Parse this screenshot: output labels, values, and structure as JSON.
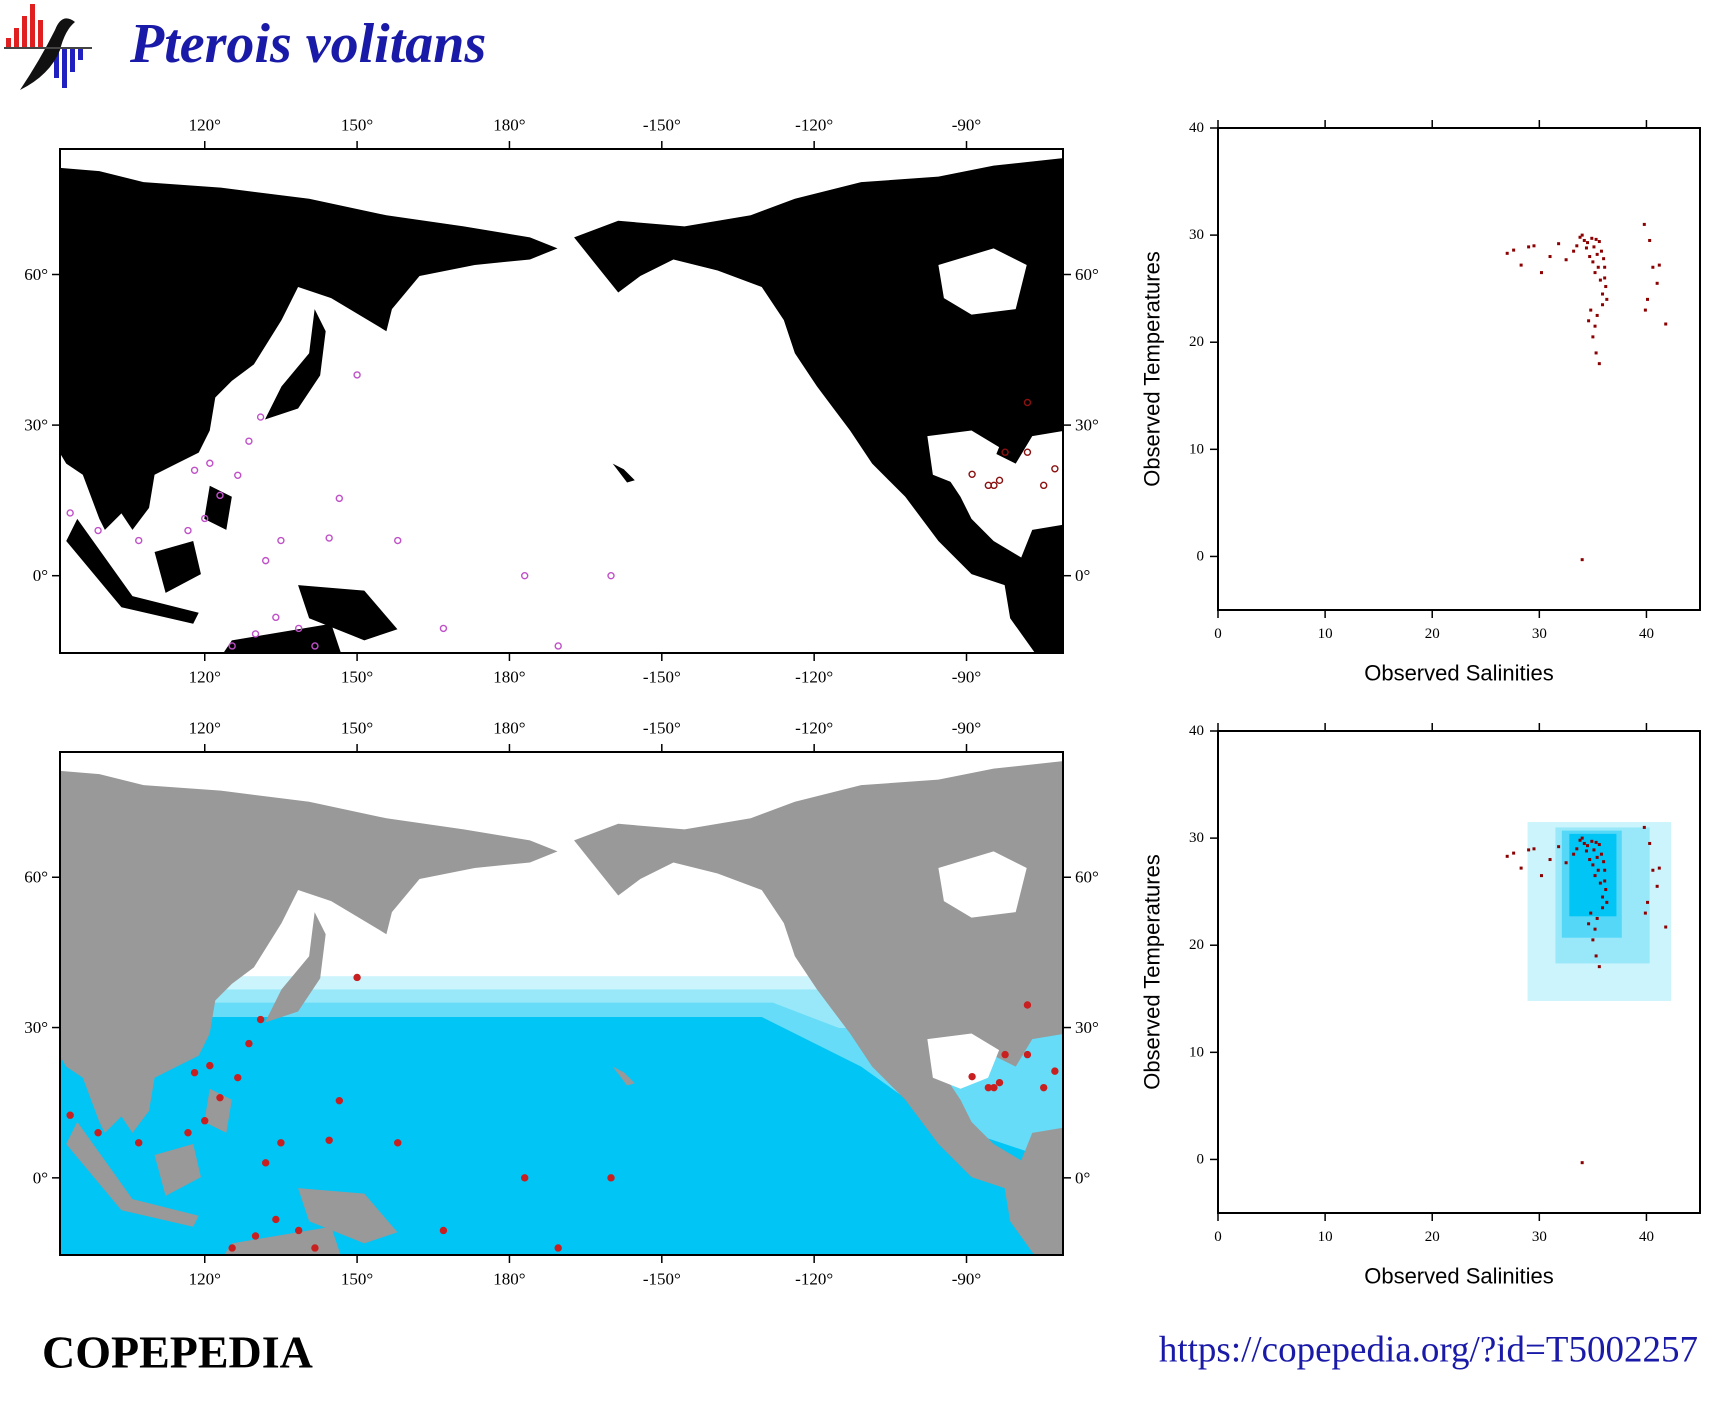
{
  "header": {
    "title": "Pterois volitans"
  },
  "chart_data": [
    {
      "type": "map",
      "land": "#000000",
      "marker": "open",
      "xlim": [
        91.5,
        -71
      ],
      "ylim": [
        -15.4,
        85
      ],
      "xticks": [
        {
          "value": 120,
          "label": "120°"
        },
        {
          "value": 150,
          "label": "150°"
        },
        {
          "value": 180,
          "label": "180°"
        },
        {
          "value": -150,
          "label": "-150°"
        },
        {
          "value": -120,
          "label": "-120°"
        },
        {
          "value": -90,
          "label": "-90°"
        }
      ],
      "yticks": [
        {
          "value": 0,
          "label": "0°"
        },
        {
          "value": 30,
          "label": "30°"
        },
        {
          "value": 60,
          "label": "60°"
        }
      ],
      "points": [
        {
          "color": "#c050c8",
          "lon": [
            150,
            146.5,
            144.5,
            135,
            132,
            158,
            -177,
            -160,
            -170.4,
            167,
            126.5,
            121,
            123,
            120,
            116.7,
            107,
            99,
            93.5,
            134,
            138.5,
            130,
            125.4,
            141.7,
            118,
            128.7,
            131
          ],
          "lat": [
            40,
            15.4,
            7.5,
            7,
            3,
            7,
            0,
            0,
            -14,
            -10.5,
            20,
            22.4,
            16,
            11.4,
            9,
            7,
            9,
            12.5,
            -8.3,
            -10.5,
            -11.6,
            -14,
            -14,
            21,
            26.8,
            31.6
          ]
        },
        {
          "color": "#8b1010",
          "lon": [
            -88.9,
            -85.7,
            -83.5,
            -82.4,
            -78,
            -74.8,
            -72.6,
            -78,
            -84.6
          ],
          "lat": [
            20.2,
            18,
            19,
            24.6,
            24.6,
            18,
            21.3,
            34.5,
            18
          ]
        }
      ]
    },
    {
      "type": "scatter",
      "xlabel": "Observed Salinities",
      "ylabel": "Observed Temperatures",
      "color": "#8b0000",
      "xlim": [
        0,
        45
      ],
      "ylim": [
        -5,
        40
      ],
      "xticks": [
        0,
        10,
        20,
        30,
        40
      ],
      "yticks": [
        0,
        10,
        20,
        30,
        40
      ],
      "x": [
        33.2,
        33.5,
        33.8,
        34.0,
        34.2,
        34.4,
        34.5,
        34.7,
        34.9,
        35.0,
        35.1,
        35.2,
        35.3,
        35.4,
        35.5,
        35.6,
        35.7,
        35.8,
        35.9,
        36.0,
        36.1,
        36.2,
        36.3,
        34.6,
        35.0,
        35.3,
        35.6,
        35.2,
        34.8,
        35.4,
        35.9,
        36.1,
        27.0,
        27.6,
        28.3,
        29.0,
        29.5,
        30.2,
        31.0,
        31.8,
        32.5,
        39.8,
        40.3,
        40.6,
        41.0,
        41.2,
        40.1,
        41.8,
        39.9,
        34.0
      ],
      "y": [
        28.5,
        29.0,
        29.8,
        30.0,
        29.5,
        28.8,
        29.3,
        28.0,
        29.7,
        27.5,
        28.9,
        26.5,
        29.6,
        28.2,
        27.0,
        29.4,
        25.8,
        28.5,
        24.5,
        27.8,
        26.0,
        25.2,
        24.0,
        22.0,
        20.5,
        19.0,
        18.0,
        21.5,
        23.0,
        22.5,
        23.5,
        27.0,
        28.3,
        28.6,
        27.2,
        28.9,
        29.0,
        26.5,
        28.0,
        29.2,
        27.7,
        31.0,
        29.5,
        27.0,
        25.5,
        27.2,
        24.0,
        21.7,
        23.0,
        -0.3
      ]
    },
    {
      "type": "map",
      "land": "#999999",
      "marker": "filled",
      "xlim": [
        91.5,
        -71
      ],
      "ylim": [
        -15.4,
        85
      ],
      "xticks": [
        {
          "value": 120,
          "label": "120°"
        },
        {
          "value": 150,
          "label": "150°"
        },
        {
          "value": 180,
          "label": "180°"
        },
        {
          "value": -150,
          "label": "-150°"
        },
        {
          "value": -120,
          "label": "-120°"
        },
        {
          "value": -90,
          "label": "-90°"
        }
      ],
      "yticks": [
        {
          "value": 0,
          "label": "0°"
        },
        {
          "value": 30,
          "label": "30°"
        },
        {
          "value": 60,
          "label": "60°"
        }
      ],
      "points": [
        {
          "color": "#c82020",
          "lon": [
            150,
            146.5,
            144.5,
            135,
            132,
            158,
            -177,
            -160,
            -170.4,
            167,
            126.5,
            121,
            123,
            120,
            116.7,
            107,
            99,
            93.5,
            134,
            138.5,
            130,
            125.4,
            141.7,
            118,
            128.7,
            131
          ],
          "lat": [
            40,
            15.4,
            7.5,
            7,
            3,
            7,
            0,
            0,
            -14,
            -10.5,
            20,
            22.4,
            16,
            11.4,
            9,
            7,
            9,
            12.5,
            -8.3,
            -10.5,
            -11.6,
            -14,
            -14,
            21,
            26.8,
            31.6
          ]
        },
        {
          "color": "#c82020",
          "lon": [
            -88.9,
            -85.7,
            -83.5,
            -82.4,
            -78,
            -74.8,
            -72.6,
            -78,
            -84.6
          ],
          "lat": [
            20.2,
            18,
            19,
            24.6,
            24.6,
            18,
            21.3,
            34.5,
            18
          ]
        }
      ]
    },
    {
      "type": "scatter",
      "xlabel": "Observed Salinities",
      "ylabel": "Observed Temperatures",
      "color": "#8b0000",
      "xlim": [
        0,
        45
      ],
      "ylim": [
        -5,
        40
      ],
      "xticks": [
        0,
        10,
        20,
        30,
        40
      ],
      "yticks": [
        0,
        10,
        20,
        30,
        40
      ],
      "regions": [
        {
          "color": "#ccf4fc",
          "xlim": [
            28.9,
            42.3
          ],
          "ylim": [
            14.8,
            31.5
          ]
        },
        {
          "color": "#99e8fa",
          "xlim": [
            31.5,
            40.3
          ],
          "ylim": [
            18.3,
            31
          ]
        },
        {
          "color": "#55d8f8",
          "xlim": [
            32.1,
            37.7
          ],
          "ylim": [
            20.7,
            30.7
          ]
        },
        {
          "color": "#00c5f5",
          "xlim": [
            32.8,
            37.2
          ],
          "ylim": [
            22.7,
            30.4
          ]
        }
      ],
      "x": [
        33.2,
        33.5,
        33.8,
        34.0,
        34.2,
        34.4,
        34.5,
        34.7,
        34.9,
        35.0,
        35.1,
        35.2,
        35.3,
        35.4,
        35.5,
        35.6,
        35.7,
        35.8,
        35.9,
        36.0,
        36.1,
        36.2,
        36.3,
        34.6,
        35.0,
        35.3,
        35.6,
        35.2,
        34.8,
        35.4,
        35.9,
        36.1,
        27.0,
        27.6,
        28.3,
        29.0,
        29.5,
        30.2,
        31.0,
        31.8,
        32.5,
        39.8,
        40.3,
        40.6,
        41.0,
        41.2,
        40.1,
        41.8,
        39.9,
        34.0
      ],
      "y": [
        28.5,
        29.0,
        29.8,
        30.0,
        29.5,
        28.8,
        29.3,
        28.0,
        29.7,
        27.5,
        28.9,
        26.5,
        29.6,
        28.2,
        27.0,
        29.4,
        25.8,
        28.5,
        24.5,
        27.8,
        26.0,
        25.2,
        24.0,
        22.0,
        20.5,
        19.0,
        18.0,
        21.5,
        23.0,
        22.5,
        23.5,
        27.0,
        28.3,
        28.6,
        27.2,
        28.9,
        29.0,
        26.5,
        28.0,
        29.2,
        27.7,
        31.0,
        29.5,
        27.0,
        25.5,
        27.2,
        24.0,
        21.7,
        23.0,
        -0.3
      ]
    }
  ],
  "footer": {
    "brand": "COPEPEDIA",
    "url": "https://copepedia.org/?id=T5002257"
  }
}
